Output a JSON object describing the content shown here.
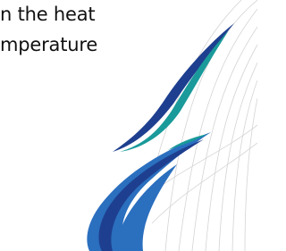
{
  "text": {
    "lines": [
      "n the heat",
      "mperature"
    ]
  }
}
